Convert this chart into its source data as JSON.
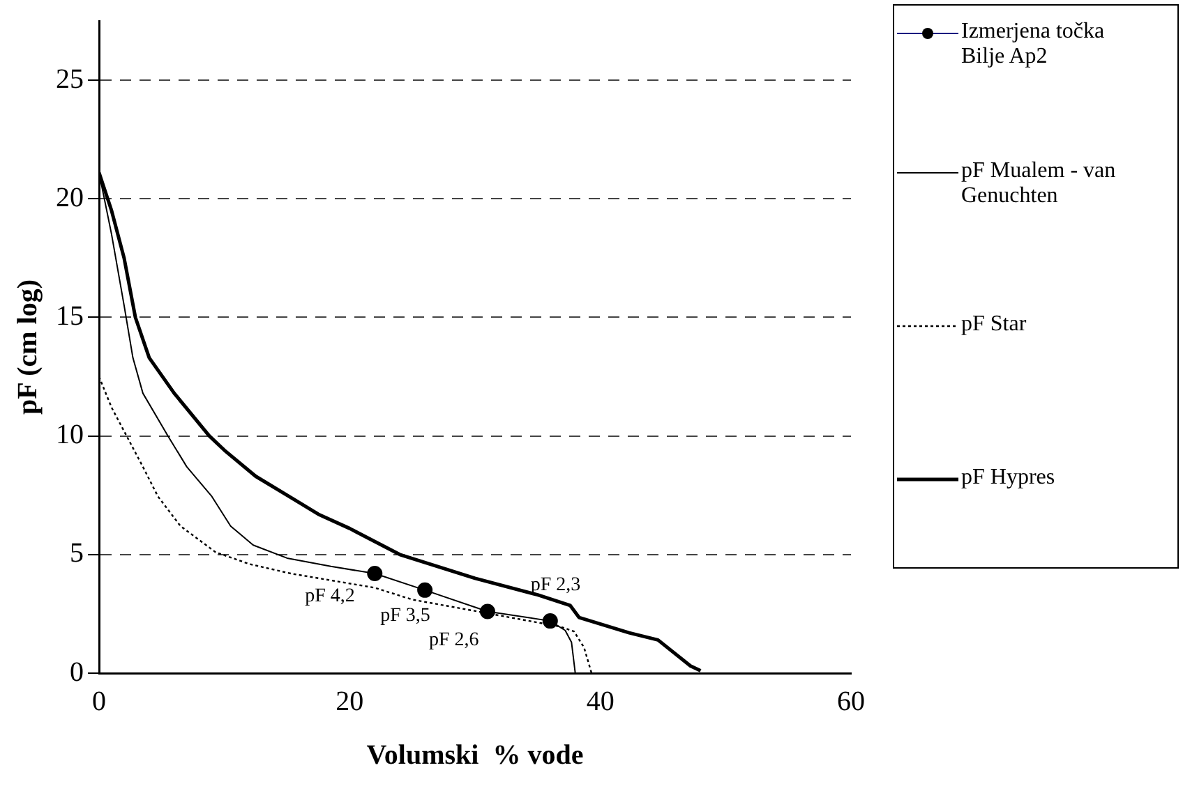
{
  "chart_data": {
    "type": "line",
    "xlabel": "Volumski  % vode",
    "ylabel": "pF (cm log)",
    "xlim": [
      0,
      60
    ],
    "xticks": [
      0,
      20,
      40,
      60
    ],
    "ylim": [
      0,
      27.5
    ],
    "yticks": [
      0,
      5,
      10,
      15,
      20,
      25
    ],
    "grid": "y",
    "legend": "right",
    "annotations": [
      {
        "text": "pF 4,2",
        "x": 22,
        "y": 4.2
      },
      {
        "text": "pF 3,5",
        "x": 26,
        "y": 3.5
      },
      {
        "text": "pF 2,6",
        "x": 31,
        "y": 2.6
      },
      {
        "text": "pF 2,3",
        "x": 36,
        "y": 2.2
      }
    ],
    "series": [
      {
        "name": "Izmerjena točka Bilje Ap2",
        "type": "scatter",
        "marker": "circle",
        "color": "#000000",
        "x": [
          22,
          26,
          31,
          36
        ],
        "values": [
          4.2,
          3.5,
          2.6,
          2.2
        ]
      },
      {
        "name": "pF Mualem - van Genuchten",
        "line_style": "solid",
        "color": "#000000",
        "x": [
          0,
          1,
          2,
          2.7,
          3.5,
          5.5,
          7,
          9,
          10.5,
          12.3,
          15,
          18.5,
          22,
          26,
          31,
          36,
          37.2,
          37.7,
          38
        ],
        "values": [
          21.1,
          18.5,
          15.5,
          13.3,
          11.8,
          10,
          8.7,
          7.45,
          6.2,
          5.4,
          4.85,
          4.5,
          4.2,
          3.5,
          2.6,
          2.2,
          1.8,
          1.3,
          0
        ]
      },
      {
        "name": "pF Star",
        "line_style": "dotted",
        "color": "#000000",
        "x": [
          0,
          1,
          2.2,
          3.5,
          4.7,
          6.5,
          9.3,
          12,
          15.3,
          22,
          25,
          29.7,
          36.8,
          37.9,
          38.7,
          39.3
        ],
        "values": [
          12.5,
          11.2,
          10,
          8.7,
          7.45,
          6.2,
          5.1,
          4.6,
          4.2,
          3.6,
          3.1,
          2.65,
          1.96,
          1.76,
          1.08,
          0
        ]
      },
      {
        "name": "pF Hypres",
        "line_style": "solid",
        "color": "#000000",
        "x": [
          0,
          1,
          2,
          2.9,
          4,
          6,
          8.8,
          10,
          12.5,
          15,
          17.5,
          20,
          24,
          30,
          35,
          37.6,
          38.3,
          42.3,
          44.6,
          47.2,
          48
        ],
        "values": [
          21.1,
          19.5,
          17.5,
          15,
          13.3,
          11.8,
          10,
          9.4,
          8.3,
          7.5,
          6.7,
          6.1,
          5,
          4.0,
          3.3,
          2.85,
          2.35,
          1.7,
          1.4,
          0.3,
          0.1
        ]
      }
    ]
  }
}
